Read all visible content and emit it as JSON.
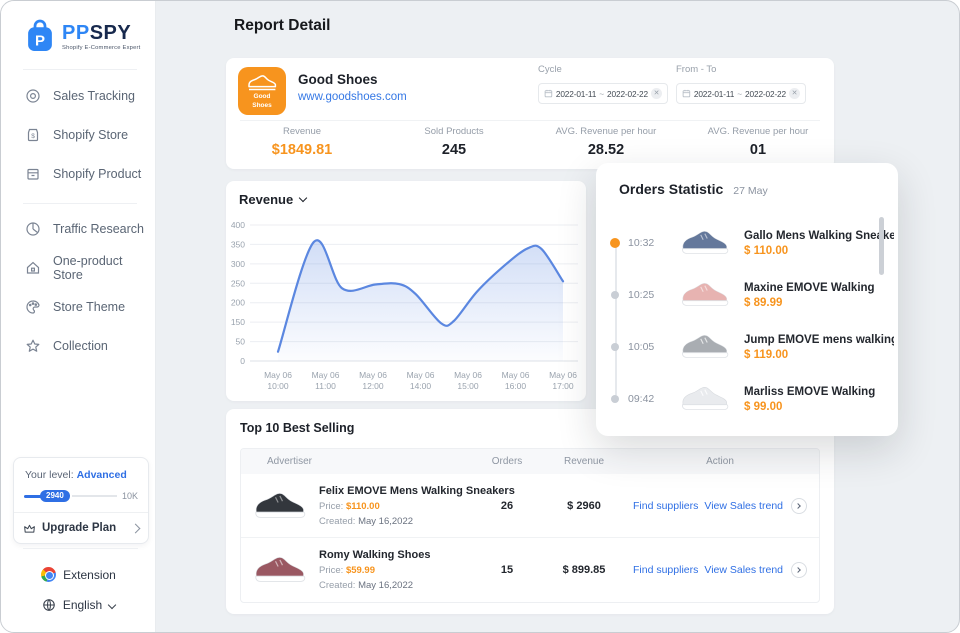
{
  "app": {
    "name_primary": "PP",
    "name_secondary": "SPY",
    "tagline": "Shopify E-Commerce Expert",
    "logo_letter": "P"
  },
  "sidebar": {
    "items": [
      {
        "label": "Sales Tracking"
      },
      {
        "label": "Shopify Store"
      },
      {
        "label": "Shopify Product"
      },
      {
        "label": "Traffic Research"
      },
      {
        "label": "One-product Store"
      },
      {
        "label": "Store Theme"
      },
      {
        "label": "Collection"
      }
    ],
    "level": {
      "prefix": "Your level:",
      "value": "Advanced",
      "current": "2940",
      "max": "10K"
    },
    "upgrade_label": "Upgrade Plan",
    "extension_label": "Extension",
    "language_label": "English"
  },
  "header": {
    "title": "Report Detail"
  },
  "store": {
    "name": "Good Shoes",
    "url": "www.goodshoes.com",
    "avatar_text": "Good Shoes",
    "cycle_label": "Cycle",
    "from_to_label": "From - To",
    "date_start": "2022-01-11",
    "date_separator": "~",
    "date_end": "2022-02-22",
    "stats": [
      {
        "label": "Revenue",
        "value": "$1849.81"
      },
      {
        "label": "Sold Products",
        "value": "245"
      },
      {
        "label": "AVG. Revenue per hour",
        "value": "28.52"
      },
      {
        "label": "AVG. Revenue per hour",
        "value": "01"
      }
    ]
  },
  "chart_data": {
    "type": "area",
    "title": "Revenue",
    "xlabel": "",
    "ylabel": "",
    "ylim": [
      0,
      400
    ],
    "grid": true,
    "legend": false,
    "x_ticks": [
      [
        "May 06",
        "10:00"
      ],
      [
        "May 06",
        "11:00"
      ],
      [
        "May 06",
        "12:00"
      ],
      [
        "May 06",
        "14:00"
      ],
      [
        "May 06",
        "15:00"
      ],
      [
        "May 06",
        "16:00"
      ],
      [
        "May 06",
        "17:00"
      ]
    ],
    "y_ticks": [
      400,
      350,
      300,
      250,
      200,
      150,
      50,
      0
    ],
    "series": [
      {
        "name": "Revenue",
        "points": [
          [
            0,
            24
          ],
          [
            0.76,
            357
          ],
          [
            1.35,
            237
          ],
          [
            2.05,
            247
          ],
          [
            2.55,
            248
          ],
          [
            2.9,
            222
          ],
          [
            3.43,
            145
          ],
          [
            3.7,
            153
          ],
          [
            4.2,
            230
          ],
          [
            4.8,
            299
          ],
          [
            5.26,
            340
          ],
          [
            5.55,
            338
          ],
          [
            6,
            255
          ]
        ]
      }
    ],
    "line_color": "#5b87e0",
    "fill_color": "#5b87e0"
  },
  "orders_panel": {
    "title": "Orders Statistic",
    "date": "27 May",
    "items": [
      {
        "time": "10:32",
        "name": "Gallo Mens Walking Sneakers...",
        "price": "$ 110.00",
        "shoe_color": "#64789b"
      },
      {
        "time": "10:25",
        "name": "Maxine EMOVE Walking",
        "price": "$ 89.99",
        "shoe_color": "#e7b3b1"
      },
      {
        "time": "10:05",
        "name": "Jump EMOVE mens walking s...",
        "price": "$ 119.00",
        "shoe_color": "#a9adb2"
      },
      {
        "time": "09:42",
        "name": "Marliss EMOVE Walking",
        "price": "$ 99.00",
        "shoe_color": "#e9ebee"
      }
    ]
  },
  "best_selling": {
    "title": "Top 10 Best Selling",
    "columns": [
      "Advertiser",
      "Orders",
      "Revenue",
      "Action"
    ],
    "price_label": "Price:",
    "created_label": "Created:",
    "rows": [
      {
        "name": "Felix EMOVE Mens Walking Sneakers",
        "price": "$110.00",
        "created": "May 16,2022",
        "orders": "26",
        "revenue": "$ 2960",
        "find_link": "Find suppliers",
        "trend_link": "View Sales trend",
        "shoe_color": "#33373d"
      },
      {
        "name": "Romy Walking Shoes",
        "price": "$59.99",
        "created": "May 16,2022",
        "orders": "15",
        "revenue": "$ 899.85",
        "find_link": "Find suppliers",
        "trend_link": "View Sales trend",
        "shoe_color": "#9a5862"
      }
    ]
  },
  "colors": {
    "accent_orange": "#f7941e",
    "link_blue": "#2f6fe4",
    "brand_blue": "#2e86f5",
    "chart_line": "#5b87e0",
    "timeline_active_dot": "#f7941e",
    "page_background": "#edf0f3"
  }
}
